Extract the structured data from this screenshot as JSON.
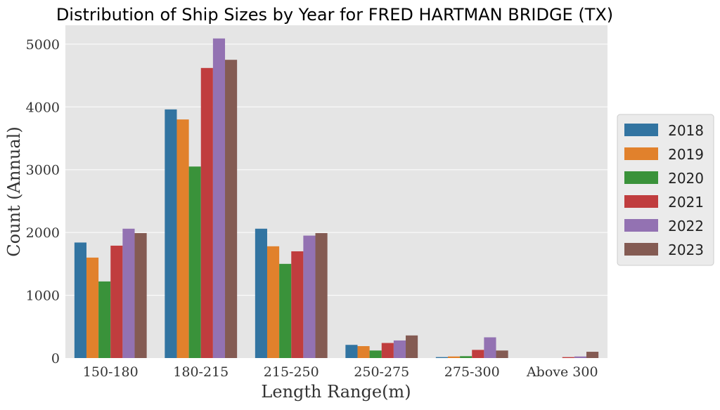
{
  "chart_data": {
    "type": "bar",
    "title": "Distribution of Ship Sizes by Year for FRED HARTMAN BRIDGE (TX)",
    "xlabel": "Length Range(m)",
    "ylabel": "Count (Annual)",
    "ylim": [
      0,
      5300
    ],
    "yticks": [
      0,
      1000,
      2000,
      3000,
      4000,
      5000
    ],
    "grid": true,
    "legend_position": "right",
    "categories": [
      "150-180",
      "180-215",
      "215-250",
      "250-275",
      "275-300",
      "Above 300"
    ],
    "series": [
      {
        "name": "2018",
        "color": "#3274a1",
        "values": [
          1840,
          3960,
          2060,
          210,
          15,
          0
        ]
      },
      {
        "name": "2019",
        "color": "#e1812c",
        "values": [
          1600,
          3800,
          1780,
          190,
          25,
          0
        ]
      },
      {
        "name": "2020",
        "color": "#3a923a",
        "values": [
          1220,
          3050,
          1500,
          120,
          30,
          0
        ]
      },
      {
        "name": "2021",
        "color": "#c03d3e",
        "values": [
          1790,
          4620,
          1700,
          240,
          130,
          15
        ]
      },
      {
        "name": "2022",
        "color": "#9372b2",
        "values": [
          2060,
          5090,
          1950,
          280,
          330,
          25
        ]
      },
      {
        "name": "2023",
        "color": "#845b53",
        "values": [
          1990,
          4750,
          1990,
          360,
          120,
          100
        ]
      }
    ]
  },
  "colors": {
    "plot_background": "#e5e5e5",
    "grid": "#ffffff",
    "legend_background": "#ebebeb",
    "legend_border": "#cccccc"
  }
}
